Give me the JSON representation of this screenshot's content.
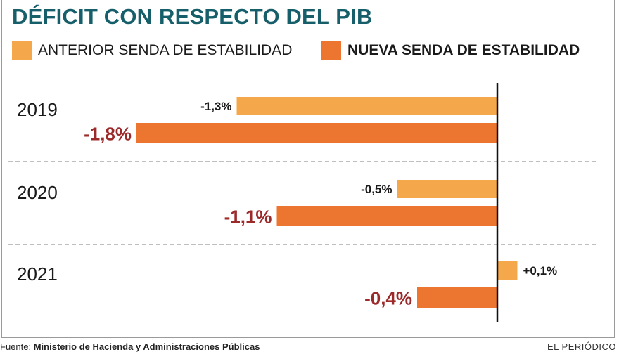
{
  "title": "DÉFICIT CON RESPECTO DEL PIB",
  "footer": {
    "source_prefix": "Fuente:",
    "source": "Ministerio de Hacienda y Administraciones Públicas",
    "brand": "EL PERIÓDICO"
  },
  "colors": {
    "title": "#155e6a",
    "anterior": "#f5a84b",
    "nueva": "#ec7530",
    "nueva_label": "#9c2a2a",
    "axis": "#111111",
    "separator": "#aaaaaa"
  },
  "chart_data": {
    "type": "bar",
    "orientation": "horizontal",
    "title": "DÉFICIT CON RESPECTO DEL PIB",
    "categories": [
      "2019",
      "2020",
      "2021"
    ],
    "series": [
      {
        "name": "ANTERIOR SENDA DE ESTABILIDAD",
        "values": [
          -1.3,
          -0.5,
          0.1
        ],
        "labels": [
          "-1,3%",
          "-0,5%",
          "+0,1%"
        ]
      },
      {
        "name": "NUEVA SENDA DE ESTABILIDAD",
        "values": [
          -1.8,
          -1.1,
          -0.4
        ],
        "labels": [
          "-1,8%",
          "-1,1%",
          "-0,4%"
        ]
      }
    ],
    "xlabel": "",
    "ylabel": "",
    "unit": "% del PIB",
    "xlim": [
      -1.8,
      0.1
    ],
    "grid": false,
    "legend_position": "top"
  }
}
